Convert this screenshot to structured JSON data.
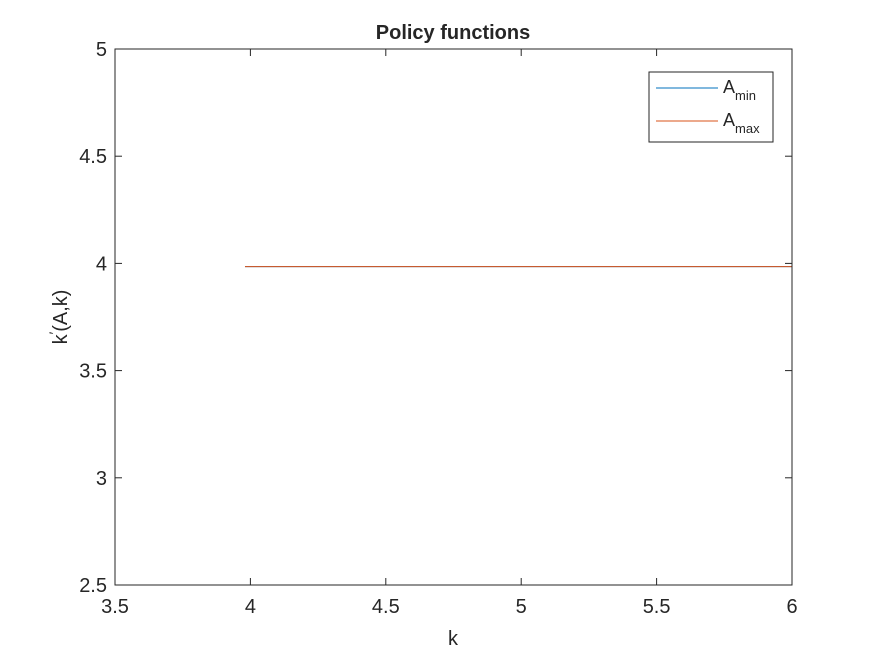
{
  "chart_data": {
    "type": "line",
    "title": "Policy functions",
    "xlabel": "k",
    "ylabel": {
      "base": "k",
      "sup": "′",
      "rest": "(A,k)"
    },
    "xlim": [
      3.5,
      6
    ],
    "ylim": [
      2.5,
      5
    ],
    "xticks": [
      3.5,
      4,
      4.5,
      5,
      5.5,
      6
    ],
    "yticks": [
      2.5,
      3,
      3.5,
      4,
      4.5,
      5
    ],
    "xtick_labels": [
      "3.5",
      "4",
      "4.5",
      "5",
      "5.5",
      "6"
    ],
    "ytick_labels": [
      "2.5",
      "3",
      "3.5",
      "4",
      "4.5",
      "5"
    ],
    "grid": false,
    "legend_position": "top-right",
    "series": [
      {
        "name": {
          "base": "A",
          "sub": "min"
        },
        "color": "#0072BD",
        "x": [
          3.98,
          6.0
        ],
        "y": [
          3.985,
          3.985
        ]
      },
      {
        "name": {
          "base": "A",
          "sub": "max"
        },
        "color": "#D95319",
        "x": [
          3.98,
          6.0
        ],
        "y": [
          3.985,
          3.985
        ]
      }
    ]
  }
}
